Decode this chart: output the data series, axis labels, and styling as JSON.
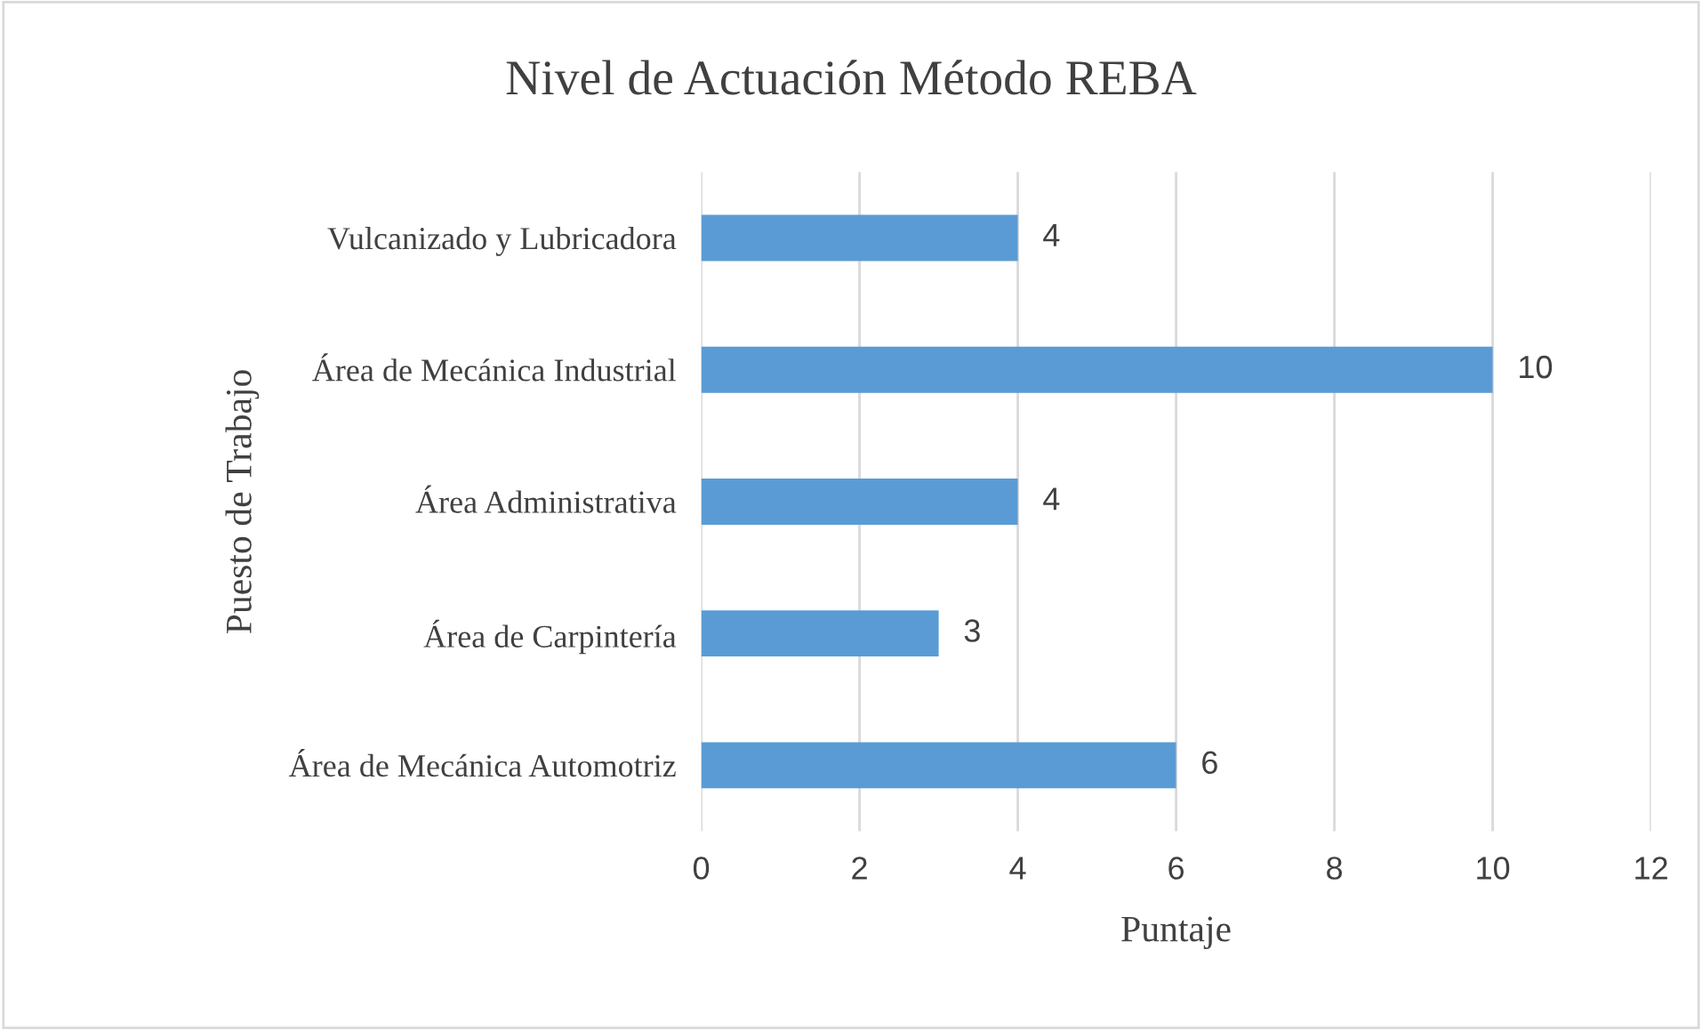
{
  "chart_data": {
    "type": "bar",
    "orientation": "horizontal",
    "title": "Nivel de Actuación Método REBA",
    "xlabel": "Puntaje",
    "ylabel": "Puesto de Trabajo",
    "categories": [
      "Vulcanizado y Lubricadora",
      "Área de Mecánica Industrial",
      "Área Administrativa",
      "Área de Carpintería",
      "Área de Mecánica Automotriz"
    ],
    "values": [
      4,
      10,
      4,
      3,
      6
    ],
    "color": "#5b9bd5",
    "xlim": [
      0,
      12
    ],
    "xticks": [
      0,
      2,
      4,
      6,
      8,
      10,
      12
    ],
    "grid": "x",
    "data_labels": true,
    "legend": false
  }
}
